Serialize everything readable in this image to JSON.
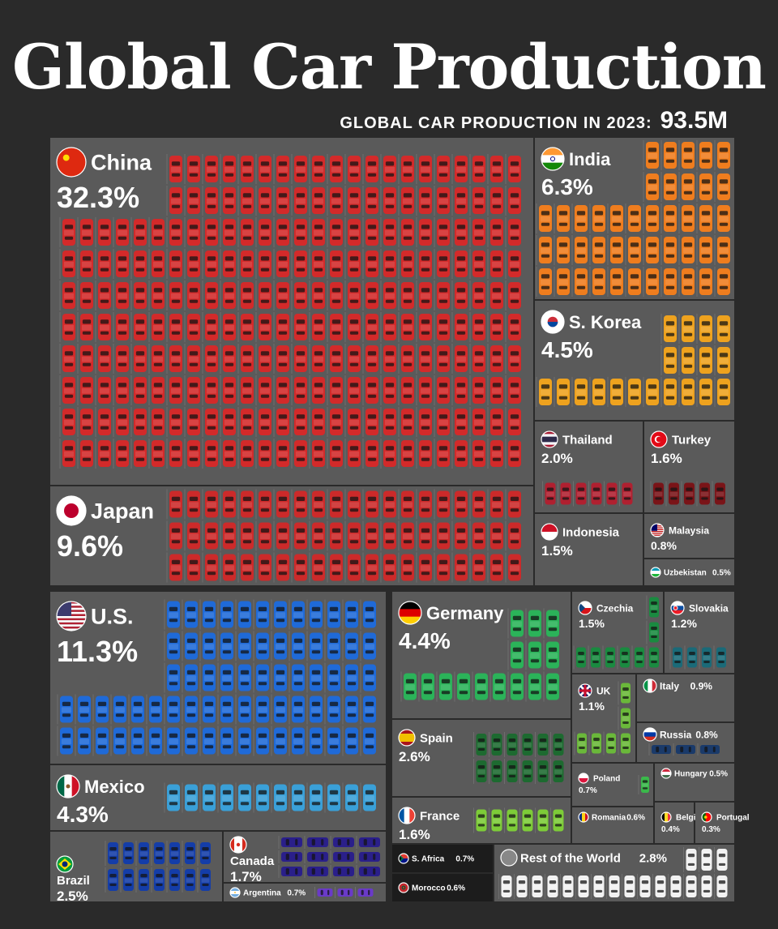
{
  "header": {
    "title": "Global Car Production",
    "subtitle_label": "GLOBAL CAR PRODUCTION IN 2023:",
    "subtitle_value": "93.5M"
  },
  "chart_data": {
    "type": "treemap",
    "title": "Global Car Production",
    "total_label": "GLOBAL CAR PRODUCTION IN 2023:",
    "total_value": "93.5M",
    "items": [
      {
        "country": "China",
        "share": 32.3,
        "label": "32.3%",
        "color": "#d32a2a"
      },
      {
        "country": "U.S.",
        "share": 11.3,
        "label": "11.3%",
        "color": "#1f6ad8"
      },
      {
        "country": "Japan",
        "share": 9.6,
        "label": "9.6%",
        "color": "#cc2a2a"
      },
      {
        "country": "India",
        "share": 6.3,
        "label": "6.3%",
        "color": "#ef7d1e"
      },
      {
        "country": "S. Korea",
        "share": 4.5,
        "label": "4.5%",
        "color": "#eea21e"
      },
      {
        "country": "Germany",
        "share": 4.4,
        "label": "4.4%",
        "color": "#2bb359"
      },
      {
        "country": "Mexico",
        "share": 4.3,
        "label": "4.3%",
        "color": "#3aa0d8"
      },
      {
        "country": "Rest of the World",
        "share": 2.8,
        "label": "2.8%",
        "color": "#f2f2f2"
      },
      {
        "country": "Spain",
        "share": 2.6,
        "label": "2.6%",
        "color": "#1d6a30"
      },
      {
        "country": "Brazil",
        "share": 2.5,
        "label": "2.5%",
        "color": "#143da8"
      },
      {
        "country": "Thailand",
        "share": 2.0,
        "label": "2.0%",
        "color": "#b02030"
      },
      {
        "country": "Canada",
        "share": 1.7,
        "label": "1.7%",
        "color": "#2a1f8a"
      },
      {
        "country": "Turkey",
        "share": 1.6,
        "label": "1.6%",
        "color": "#7a1418"
      },
      {
        "country": "France",
        "share": 1.6,
        "label": "1.6%",
        "color": "#7dcc38"
      },
      {
        "country": "Indonesia",
        "share": 1.5,
        "label": "1.5%",
        "color": "#d11a30"
      },
      {
        "country": "Czechia",
        "share": 1.5,
        "label": "1.5%",
        "color": "#1a8a40"
      },
      {
        "country": "Slovakia",
        "share": 1.2,
        "label": "1.2%",
        "color": "#1a6a78"
      },
      {
        "country": "UK",
        "share": 1.1,
        "label": "1.1%",
        "color": "#6ab83a"
      },
      {
        "country": "Italy",
        "share": 0.9,
        "label": "0.9%",
        "color": "#2a5a2a"
      },
      {
        "country": "Malaysia",
        "share": 0.8,
        "label": "0.8%",
        "color": "#e02a5a"
      },
      {
        "country": "Russia",
        "share": 0.8,
        "label": "0.8%",
        "color": "#1a3a6a"
      },
      {
        "country": "Poland",
        "share": 0.7,
        "label": "0.7%",
        "color": "#3ab84a"
      },
      {
        "country": "S. Africa",
        "share": 0.7,
        "label": "0.7%",
        "color": "#f5b800"
      },
      {
        "country": "Argentina",
        "share": 0.7,
        "label": "0.7%",
        "color": "#6a3ac8"
      },
      {
        "country": "Morocco",
        "share": 0.6,
        "label": "0.6%",
        "color": "#f0a010"
      },
      {
        "country": "Romania",
        "share": 0.6,
        "label": "0.6%",
        "color": "#1a5a5a"
      },
      {
        "country": "Uzbekistan",
        "share": 0.5,
        "label": "0.5%",
        "color": "#a8123a"
      },
      {
        "country": "Hungary",
        "share": 0.5,
        "label": "0.5%",
        "color": "#1a6a30"
      },
      {
        "country": "Belgium",
        "share": 0.4,
        "label": "0.4%",
        "color": "#1a8a40"
      },
      {
        "country": "Portugal",
        "share": 0.3,
        "label": "0.3%",
        "color": "#2ab87a"
      }
    ]
  }
}
